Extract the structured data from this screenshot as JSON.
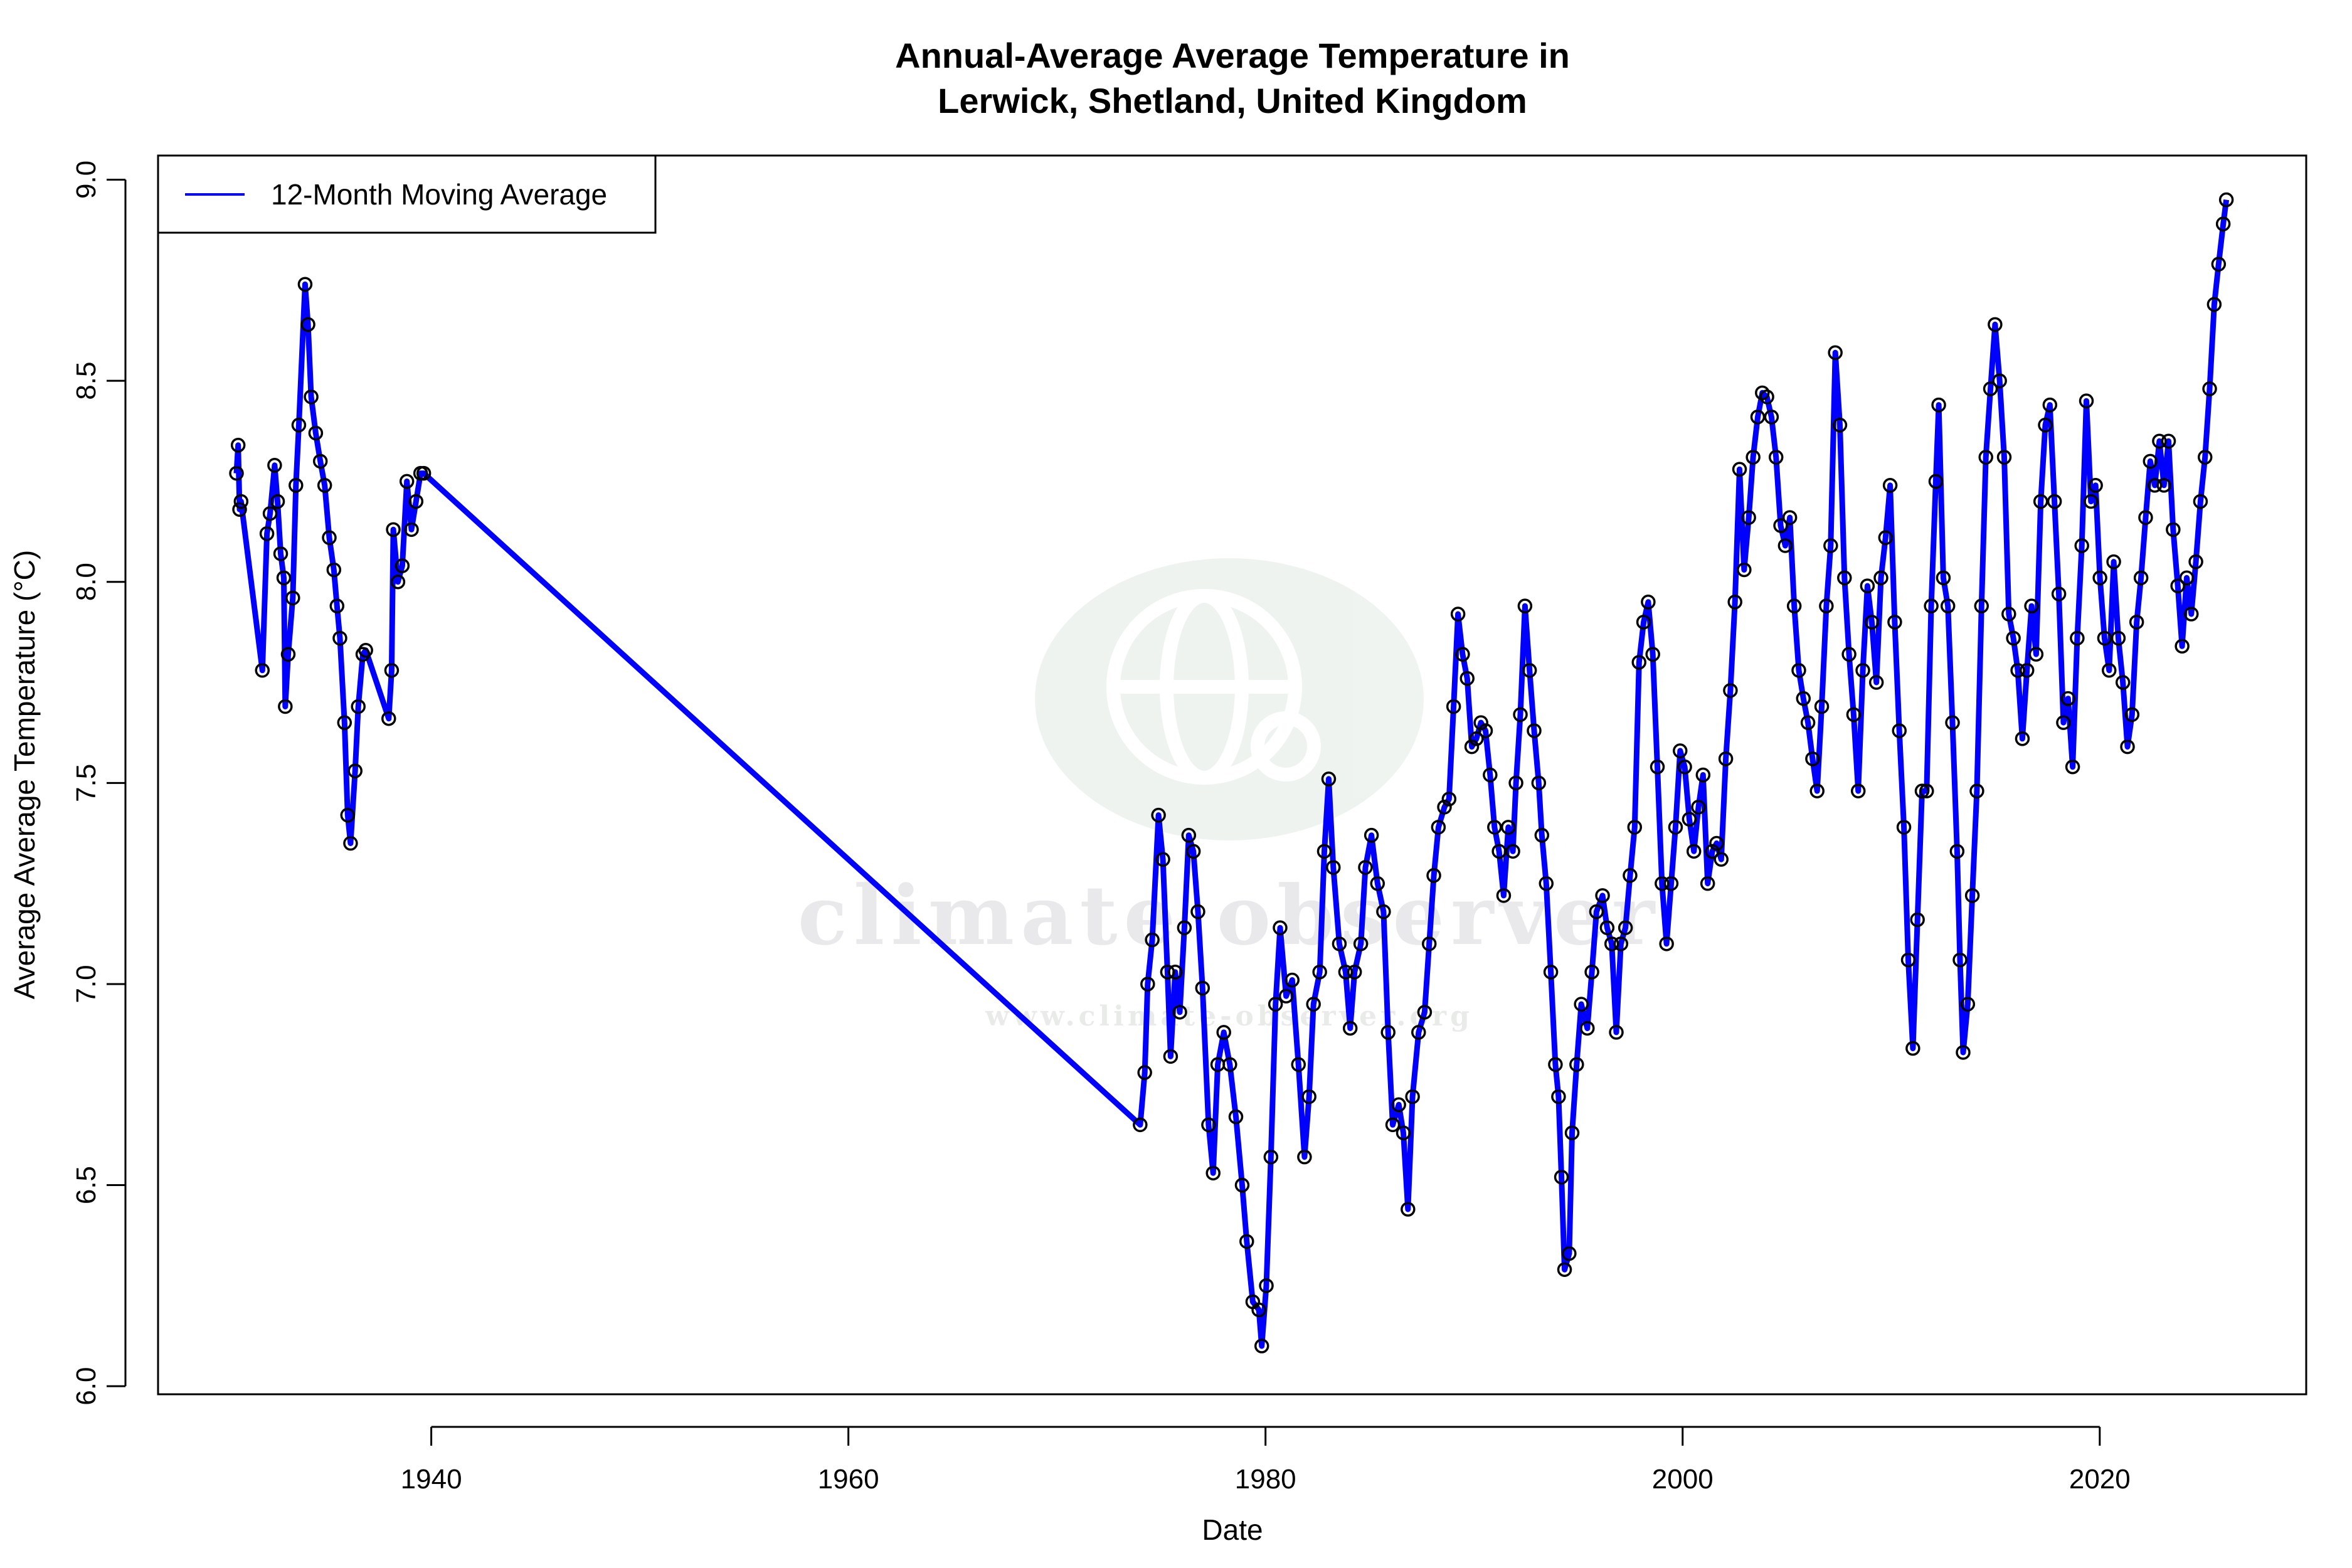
{
  "chart_data": {
    "type": "line",
    "title": [
      "Annual-Average Average Temperature in",
      "Lerwick, Shetland, United Kingdom"
    ],
    "xlabel": "Date",
    "ylabel": "Average Average Temperature (°C)",
    "xlim": [
      1926.9,
      2029.9
    ],
    "ylim": [
      5.98,
      9.06
    ],
    "xticks": [
      1940,
      1960,
      1980,
      2000,
      2020
    ],
    "yticks": [
      "6.0",
      "6.5",
      "7.0",
      "7.5",
      "8.0",
      "8.5",
      "9.0"
    ],
    "grid": false,
    "legend": {
      "placement": "top-left",
      "entries": [
        "12-Month Moving Average"
      ]
    },
    "series": [
      {
        "name": "12-Month Moving Average",
        "color": "#0000ff",
        "marker": "open-circle",
        "points": [
          [
            1930.66,
            8.27
          ],
          [
            1930.74,
            8.34
          ],
          [
            1930.81,
            8.18
          ],
          [
            1930.88,
            8.2
          ],
          [
            1931.9,
            7.78
          ],
          [
            1932.12,
            8.12
          ],
          [
            1932.27,
            8.17
          ],
          [
            1932.49,
            8.29
          ],
          [
            1932.63,
            8.2
          ],
          [
            1932.78,
            8.07
          ],
          [
            1932.93,
            8.01
          ],
          [
            1933.0,
            7.69
          ],
          [
            1933.14,
            7.82
          ],
          [
            1933.36,
            7.96
          ],
          [
            1933.51,
            8.24
          ],
          [
            1933.65,
            8.39
          ],
          [
            1933.95,
            8.74
          ],
          [
            1934.09,
            8.64
          ],
          [
            1934.24,
            8.46
          ],
          [
            1934.46,
            8.37
          ],
          [
            1934.68,
            8.3
          ],
          [
            1934.89,
            8.24
          ],
          [
            1935.11,
            8.11
          ],
          [
            1935.33,
            8.03
          ],
          [
            1935.48,
            7.94
          ],
          [
            1935.62,
            7.86
          ],
          [
            1935.84,
            7.65
          ],
          [
            1935.99,
            7.42
          ],
          [
            1936.13,
            7.35
          ],
          [
            1936.35,
            7.53
          ],
          [
            1936.5,
            7.69
          ],
          [
            1936.72,
            7.82
          ],
          [
            1936.86,
            7.83
          ],
          [
            1937.96,
            7.66
          ],
          [
            1938.1,
            7.78
          ],
          [
            1938.18,
            8.13
          ],
          [
            1938.4,
            8.0
          ],
          [
            1938.61,
            8.04
          ],
          [
            1938.83,
            8.25
          ],
          [
            1939.05,
            8.13
          ],
          [
            1939.27,
            8.2
          ],
          [
            1939.49,
            8.27
          ],
          [
            1939.64,
            8.27
          ],
          [
            1973.99,
            6.65
          ],
          [
            1974.21,
            6.78
          ],
          [
            1974.35,
            7.0
          ],
          [
            1974.57,
            7.11
          ],
          [
            1974.87,
            7.42
          ],
          [
            1975.08,
            7.31
          ],
          [
            1975.3,
            7.03
          ],
          [
            1975.45,
            6.82
          ],
          [
            1975.67,
            7.03
          ],
          [
            1975.89,
            6.93
          ],
          [
            1976.11,
            7.14
          ],
          [
            1976.32,
            7.37
          ],
          [
            1976.54,
            7.33
          ],
          [
            1976.76,
            7.18
          ],
          [
            1976.98,
            6.99
          ],
          [
            1977.27,
            6.65
          ],
          [
            1977.49,
            6.53
          ],
          [
            1977.71,
            6.8
          ],
          [
            1978.0,
            6.88
          ],
          [
            1978.29,
            6.8
          ],
          [
            1978.58,
            6.67
          ],
          [
            1978.88,
            6.5
          ],
          [
            1979.1,
            6.36
          ],
          [
            1979.39,
            6.21
          ],
          [
            1979.68,
            6.19
          ],
          [
            1979.82,
            6.1
          ],
          [
            1980.04,
            6.25
          ],
          [
            1980.26,
            6.57
          ],
          [
            1980.48,
            6.95
          ],
          [
            1980.7,
            7.14
          ],
          [
            1980.99,
            6.97
          ],
          [
            1981.28,
            7.01
          ],
          [
            1981.58,
            6.8
          ],
          [
            1981.87,
            6.57
          ],
          [
            1982.09,
            6.72
          ],
          [
            1982.3,
            6.95
          ],
          [
            1982.6,
            7.03
          ],
          [
            1982.82,
            7.33
          ],
          [
            1983.03,
            7.51
          ],
          [
            1983.25,
            7.29
          ],
          [
            1983.54,
            7.1
          ],
          [
            1983.84,
            7.03
          ],
          [
            1984.06,
            6.89
          ],
          [
            1984.27,
            7.03
          ],
          [
            1984.57,
            7.1
          ],
          [
            1984.79,
            7.29
          ],
          [
            1985.08,
            7.37
          ],
          [
            1985.37,
            7.25
          ],
          [
            1985.66,
            7.18
          ],
          [
            1985.88,
            6.88
          ],
          [
            1986.1,
            6.65
          ],
          [
            1986.39,
            6.7
          ],
          [
            1986.61,
            6.63
          ],
          [
            1986.83,
            6.44
          ],
          [
            1987.05,
            6.72
          ],
          [
            1987.34,
            6.88
          ],
          [
            1987.63,
            6.93
          ],
          [
            1987.85,
            7.1
          ],
          [
            1988.07,
            7.27
          ],
          [
            1988.29,
            7.39
          ],
          [
            1988.58,
            7.44
          ],
          [
            1988.8,
            7.46
          ],
          [
            1989.02,
            7.69
          ],
          [
            1989.23,
            7.92
          ],
          [
            1989.45,
            7.82
          ],
          [
            1989.67,
            7.76
          ],
          [
            1989.89,
            7.59
          ],
          [
            1990.11,
            7.61
          ],
          [
            1990.33,
            7.65
          ],
          [
            1990.55,
            7.63
          ],
          [
            1990.77,
            7.52
          ],
          [
            1990.98,
            7.39
          ],
          [
            1991.2,
            7.33
          ],
          [
            1991.42,
            7.22
          ],
          [
            1991.64,
            7.39
          ],
          [
            1991.86,
            7.33
          ],
          [
            1992.01,
            7.5
          ],
          [
            1992.22,
            7.67
          ],
          [
            1992.44,
            7.94
          ],
          [
            1992.66,
            7.78
          ],
          [
            1992.88,
            7.63
          ],
          [
            1993.1,
            7.5
          ],
          [
            1993.25,
            7.37
          ],
          [
            1993.46,
            7.25
          ],
          [
            1993.68,
            7.03
          ],
          [
            1993.9,
            6.8
          ],
          [
            1994.05,
            6.72
          ],
          [
            1994.19,
            6.52
          ],
          [
            1994.34,
            6.29
          ],
          [
            1994.56,
            6.33
          ],
          [
            1994.7,
            6.63
          ],
          [
            1994.92,
            6.8
          ],
          [
            1995.14,
            6.95
          ],
          [
            1995.43,
            6.89
          ],
          [
            1995.65,
            7.03
          ],
          [
            1995.87,
            7.18
          ],
          [
            1996.16,
            7.22
          ],
          [
            1996.38,
            7.14
          ],
          [
            1996.6,
            7.1
          ],
          [
            1996.82,
            6.88
          ],
          [
            1997.04,
            7.1
          ],
          [
            1997.26,
            7.14
          ],
          [
            1997.48,
            7.27
          ],
          [
            1997.7,
            7.39
          ],
          [
            1997.91,
            7.8
          ],
          [
            1998.13,
            7.9
          ],
          [
            1998.35,
            7.95
          ],
          [
            1998.57,
            7.82
          ],
          [
            1998.79,
            7.54
          ],
          [
            1999.01,
            7.25
          ],
          [
            1999.23,
            7.1
          ],
          [
            1999.45,
            7.25
          ],
          [
            1999.66,
            7.39
          ],
          [
            1999.88,
            7.58
          ],
          [
            2000.1,
            7.54
          ],
          [
            2000.32,
            7.41
          ],
          [
            2000.54,
            7.33
          ],
          [
            2000.76,
            7.44
          ],
          [
            2000.98,
            7.52
          ],
          [
            2001.2,
            7.25
          ],
          [
            2001.42,
            7.33
          ],
          [
            2001.63,
            7.35
          ],
          [
            2001.85,
            7.31
          ],
          [
            2002.07,
            7.56
          ],
          [
            2002.29,
            7.73
          ],
          [
            2002.51,
            7.95
          ],
          [
            2002.73,
            8.28
          ],
          [
            2002.95,
            8.03
          ],
          [
            2003.17,
            8.16
          ],
          [
            2003.38,
            8.31
          ],
          [
            2003.6,
            8.41
          ],
          [
            2003.82,
            8.47
          ],
          [
            2004.04,
            8.46
          ],
          [
            2004.26,
            8.41
          ],
          [
            2004.48,
            8.31
          ],
          [
            2004.7,
            8.14
          ],
          [
            2004.92,
            8.09
          ],
          [
            2005.14,
            8.16
          ],
          [
            2005.35,
            7.94
          ],
          [
            2005.57,
            7.78
          ],
          [
            2005.79,
            7.71
          ],
          [
            2006.01,
            7.65
          ],
          [
            2006.23,
            7.56
          ],
          [
            2006.45,
            7.48
          ],
          [
            2006.67,
            7.69
          ],
          [
            2006.89,
            7.94
          ],
          [
            2007.1,
            8.09
          ],
          [
            2007.32,
            8.57
          ],
          [
            2007.54,
            8.39
          ],
          [
            2007.76,
            8.01
          ],
          [
            2007.98,
            7.82
          ],
          [
            2008.2,
            7.67
          ],
          [
            2008.42,
            7.48
          ],
          [
            2008.64,
            7.78
          ],
          [
            2008.86,
            7.99
          ],
          [
            2009.07,
            7.9
          ],
          [
            2009.29,
            7.75
          ],
          [
            2009.51,
            8.01
          ],
          [
            2009.73,
            8.11
          ],
          [
            2009.95,
            8.24
          ],
          [
            2010.17,
            7.9
          ],
          [
            2010.39,
            7.63
          ],
          [
            2010.61,
            7.39
          ],
          [
            2010.82,
            7.06
          ],
          [
            2011.04,
            6.84
          ],
          [
            2011.26,
            7.16
          ],
          [
            2011.48,
            7.48
          ],
          [
            2011.7,
            7.48
          ],
          [
            2011.92,
            7.94
          ],
          [
            2012.14,
            8.25
          ],
          [
            2012.28,
            8.44
          ],
          [
            2012.5,
            8.01
          ],
          [
            2012.72,
            7.94
          ],
          [
            2012.94,
            7.65
          ],
          [
            2013.16,
            7.33
          ],
          [
            2013.3,
            7.06
          ],
          [
            2013.45,
            6.83
          ],
          [
            2013.67,
            6.95
          ],
          [
            2013.89,
            7.22
          ],
          [
            2014.11,
            7.48
          ],
          [
            2014.33,
            7.94
          ],
          [
            2014.54,
            8.31
          ],
          [
            2014.76,
            8.48
          ],
          [
            2014.98,
            8.64
          ],
          [
            2015.2,
            8.5
          ],
          [
            2015.42,
            8.31
          ],
          [
            2015.64,
            7.92
          ],
          [
            2015.86,
            7.86
          ],
          [
            2016.07,
            7.78
          ],
          [
            2016.29,
            7.61
          ],
          [
            2016.51,
            7.78
          ],
          [
            2016.73,
            7.94
          ],
          [
            2016.95,
            7.82
          ],
          [
            2017.17,
            8.2
          ],
          [
            2017.39,
            8.39
          ],
          [
            2017.61,
            8.44
          ],
          [
            2017.83,
            8.2
          ],
          [
            2018.04,
            7.97
          ],
          [
            2018.26,
            7.65
          ],
          [
            2018.48,
            7.71
          ],
          [
            2018.7,
            7.54
          ],
          [
            2018.92,
            7.86
          ],
          [
            2019.14,
            8.09
          ],
          [
            2019.36,
            8.45
          ],
          [
            2019.58,
            8.2
          ],
          [
            2019.8,
            8.24
          ],
          [
            2020.01,
            8.01
          ],
          [
            2020.23,
            7.86
          ],
          [
            2020.45,
            7.78
          ],
          [
            2020.67,
            8.05
          ],
          [
            2020.89,
            7.86
          ],
          [
            2021.11,
            7.75
          ],
          [
            2021.33,
            7.59
          ],
          [
            2021.55,
            7.67
          ],
          [
            2021.77,
            7.9
          ],
          [
            2021.98,
            8.01
          ],
          [
            2022.2,
            8.16
          ],
          [
            2022.42,
            8.3
          ],
          [
            2022.64,
            8.24
          ],
          [
            2022.86,
            8.35
          ],
          [
            2023.08,
            8.24
          ],
          [
            2023.3,
            8.35
          ],
          [
            2023.52,
            8.13
          ],
          [
            2023.74,
            7.99
          ],
          [
            2023.95,
            7.84
          ],
          [
            2024.17,
            8.01
          ],
          [
            2024.39,
            7.92
          ],
          [
            2024.61,
            8.05
          ],
          [
            2024.83,
            8.2
          ],
          [
            2025.05,
            8.31
          ],
          [
            2025.27,
            8.48
          ],
          [
            2025.49,
            8.69
          ],
          [
            2025.7,
            8.79
          ],
          [
            2025.92,
            8.89
          ],
          [
            2026.07,
            8.95
          ]
        ]
      }
    ]
  },
  "watermark": {
    "name": "climate observer",
    "url": "www.climate-observer.org"
  }
}
